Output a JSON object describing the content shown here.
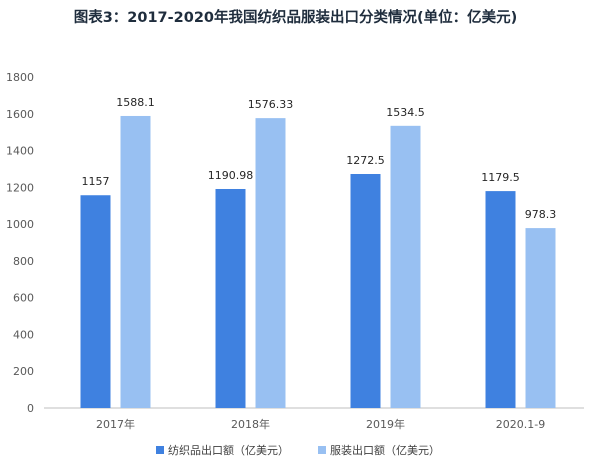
{
  "chart_data": {
    "type": "bar",
    "title": "图表3：2017-2020年我国纺织品服装出口分类情况(单位：亿美元)",
    "categories": [
      "2017年",
      "2018年",
      "2019年",
      "2020.1-9"
    ],
    "series": [
      {
        "name": "纺织品出口额（亿美元）",
        "values": [
          1157,
          1190.98,
          1272.5,
          1179.5
        ],
        "color": "#3f81e0"
      },
      {
        "name": "服装出口额（亿美元）",
        "values": [
          1588.1,
          1576.33,
          1534.5,
          978.3
        ],
        "color": "#98c0f2"
      }
    ],
    "data_labels": [
      [
        "1157",
        "1190.98",
        "1272.5",
        "1179.5"
      ],
      [
        "1588.1",
        "1576.33",
        "1534.5",
        "978.3"
      ]
    ],
    "ylim": [
      0,
      1800
    ],
    "yticks": [
      0,
      200,
      400,
      600,
      800,
      1000,
      1200,
      1400,
      1600,
      1800
    ],
    "xlabel": "",
    "ylabel": "",
    "grid": false,
    "legend_position": "bottom"
  }
}
